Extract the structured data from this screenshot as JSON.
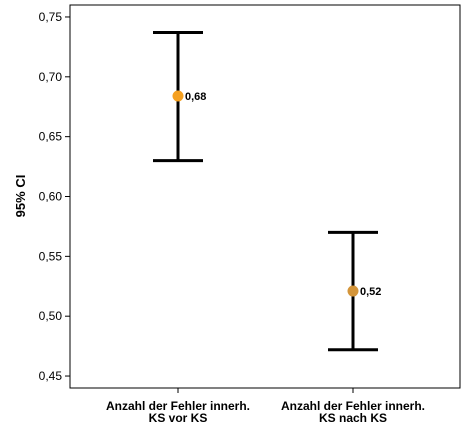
{
  "chart_data": {
    "type": "errorbar",
    "ylabel": "95% CI",
    "xlabel": "",
    "ylim": [
      0.44,
      0.76
    ],
    "yticks": [
      0.45,
      0.5,
      0.55,
      0.6,
      0.65,
      0.7,
      0.75
    ],
    "ytick_labels": [
      "0,45",
      "0,50",
      "0,55",
      "0,60",
      "0,65",
      "0,70",
      "0,75"
    ],
    "categories": [
      [
        "Anzahl der Fehler innerh.",
        "KS vor KS"
      ],
      [
        "Anzahl der Fehler innerh.",
        "KS nach KS"
      ]
    ],
    "points": [
      {
        "mean": 0.684,
        "lower": 0.63,
        "upper": 0.737,
        "label": "0,68",
        "color": "#f5a020"
      },
      {
        "mean": 0.521,
        "lower": 0.472,
        "upper": 0.57,
        "label": "0,52",
        "color": "#d4953a"
      }
    ],
    "grid": false,
    "legend": "none"
  }
}
